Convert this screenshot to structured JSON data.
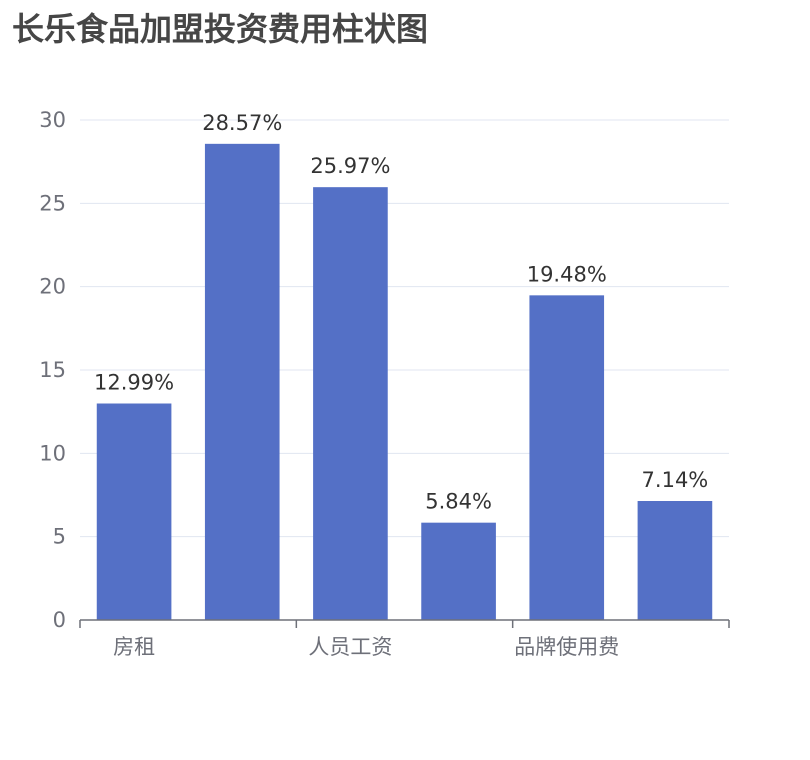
{
  "chart_data": {
    "type": "bar",
    "title": "长乐食品加盟投资费用柱状图",
    "categories": [
      "房租",
      "",
      "人员工资",
      "",
      "品牌使用费",
      ""
    ],
    "values": [
      12.99,
      28.57,
      25.97,
      5.84,
      19.48,
      7.14
    ],
    "value_labels": [
      "12.99%",
      "28.57%",
      "25.97%",
      "5.84%",
      "19.48%",
      "7.14%"
    ],
    "ylim": [
      0,
      30
    ],
    "yticks": [
      0,
      5,
      10,
      15,
      20,
      25,
      30
    ],
    "ytick_labels": [
      "0",
      "5",
      "10",
      "15",
      "20",
      "25",
      "30"
    ],
    "xlabel": "",
    "ylabel": "",
    "grid": true,
    "bar_color": "#5470c6"
  }
}
